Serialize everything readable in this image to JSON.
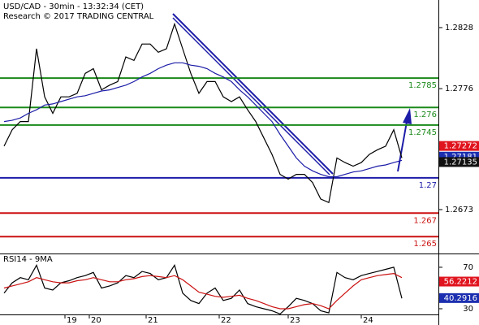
{
  "chart_data": [
    {
      "type": "line",
      "title": "USD/CAD - 30min - 13:32:34 (CET)",
      "subtitle": "Research © 2017 TRADING CENTRAL",
      "x": [
        0,
        1,
        2,
        3,
        4,
        5,
        6,
        7,
        8,
        9,
        10,
        11,
        12,
        13,
        14,
        15,
        16,
        17,
        18,
        19,
        20,
        21,
        22,
        23,
        24,
        25,
        26,
        27,
        28,
        29,
        30,
        31,
        32,
        33,
        34,
        35,
        36,
        37,
        38,
        39,
        40,
        41,
        42,
        43,
        44,
        45,
        46,
        47,
        48,
        49
      ],
      "xlim": [
        -0.5,
        53.5
      ],
      "series": [
        {
          "color": "#000000",
          "values": [
            1.2727,
            1.2741,
            1.2748,
            1.2748,
            1.281,
            1.2769,
            1.2755,
            1.2769,
            1.2769,
            1.2772,
            1.2789,
            1.2793,
            1.2775,
            1.2779,
            1.2782,
            1.2803,
            1.28,
            1.2814,
            1.2814,
            1.2807,
            1.281,
            1.2831,
            1.281,
            1.2789,
            1.2772,
            1.2782,
            1.2782,
            1.2769,
            1.2765,
            1.2769,
            1.2758,
            1.2748,
            1.2734,
            1.272,
            1.2703,
            1.2699,
            1.2703,
            1.2703,
            1.2696,
            1.2682,
            1.2679,
            1.2717,
            1.2713,
            1.271,
            1.2713,
            1.272,
            1.2724,
            1.2727,
            1.2741,
            1.2717
          ]
        },
        {
          "color": "#1c1ca8",
          "values": [
            1.2748,
            1.2749,
            1.2751,
            1.2755,
            1.2758,
            1.2762,
            1.2763,
            1.2765,
            1.2767,
            1.2769,
            1.277,
            1.2772,
            1.2774,
            1.2775,
            1.2777,
            1.2779,
            1.2782,
            1.2786,
            1.2789,
            1.2793,
            1.2796,
            1.2798,
            1.2798,
            1.2796,
            1.2795,
            1.2793,
            1.2789,
            1.2786,
            1.2782,
            1.2775,
            1.2769,
            1.2762,
            1.2755,
            1.2748,
            1.2737,
            1.2727,
            1.2717,
            1.271,
            1.2706,
            1.2703,
            1.2701,
            1.2701,
            1.2703,
            1.2705,
            1.2706,
            1.2708,
            1.271,
            1.2711,
            1.2713,
            1.2715
          ]
        }
      ],
      "ylim": [
        1.26356,
        1.28515
      ],
      "yticks": [
        1.2828,
        1.2776,
        1.2673
      ],
      "levels": [
        {
          "value": 1.2785,
          "color": "#1a8a1a"
        },
        {
          "value": 1.276,
          "color": "#1a8a1a"
        },
        {
          "value": 1.2745,
          "color": "#1a8a1a"
        },
        {
          "value": 1.27,
          "color": "#1c1ca8"
        },
        {
          "value": 1.267,
          "color": "#cc1111"
        },
        {
          "value": 1.265,
          "color": "#cc1111"
        }
      ],
      "price_labels": [
        {
          "value": 1.27272,
          "color": "#e0141e"
        },
        {
          "value": 1.27181,
          "color": "#1c2fb0"
        },
        {
          "value": 1.27135,
          "color": "#111111"
        }
      ]
    },
    {
      "type": "line",
      "title": "RSI14 - 9MA",
      "x": [
        0,
        1,
        2,
        3,
        4,
        5,
        6,
        7,
        8,
        9,
        10,
        11,
        12,
        13,
        14,
        15,
        16,
        17,
        18,
        19,
        20,
        21,
        22,
        23,
        24,
        25,
        26,
        27,
        28,
        29,
        30,
        31,
        32,
        33,
        34,
        35,
        36,
        37,
        38,
        39,
        40,
        41,
        42,
        43,
        44,
        45,
        46,
        47,
        48,
        49
      ],
      "xlim": [
        -0.5,
        53.5
      ],
      "xticks": [
        {
          "value": 7.5,
          "label": "19"
        },
        {
          "value": 10.5,
          "label": "20"
        },
        {
          "value": 17.5,
          "label": "21"
        },
        {
          "value": 26.5,
          "label": "22"
        },
        {
          "value": 35,
          "label": "23"
        },
        {
          "value": 44,
          "label": "24"
        }
      ],
      "series": [
        {
          "color": "#000000",
          "values": [
            45,
            55,
            60,
            58,
            72,
            50,
            48,
            55,
            57,
            60,
            62,
            65,
            50,
            52,
            55,
            62,
            60,
            66,
            64,
            58,
            60,
            72,
            45,
            38,
            35,
            45,
            50,
            38,
            40,
            48,
            35,
            32,
            30,
            28,
            25,
            32,
            40,
            38,
            35,
            28,
            26,
            65,
            60,
            58,
            62,
            64,
            66,
            68,
            70,
            40
          ]
        },
        {
          "color": "#cc1111",
          "values": [
            50,
            52,
            54,
            56,
            60,
            58,
            56,
            55,
            55,
            57,
            58,
            60,
            58,
            56,
            56,
            58,
            59,
            61,
            62,
            61,
            60,
            62,
            58,
            52,
            46,
            44,
            42,
            41,
            42,
            43,
            40,
            38,
            35,
            32,
            30,
            30,
            32,
            34,
            35,
            33,
            30,
            38,
            45,
            52,
            58,
            60,
            62,
            63,
            64,
            60
          ]
        }
      ],
      "ylim": [
        24.5,
        82.5
      ],
      "yticks": [
        70,
        30
      ],
      "price_labels": [
        {
          "value": 56.2212,
          "color": "#e0141e"
        },
        {
          "value": 40.2916,
          "color": "#1c2fb0"
        }
      ]
    }
  ]
}
